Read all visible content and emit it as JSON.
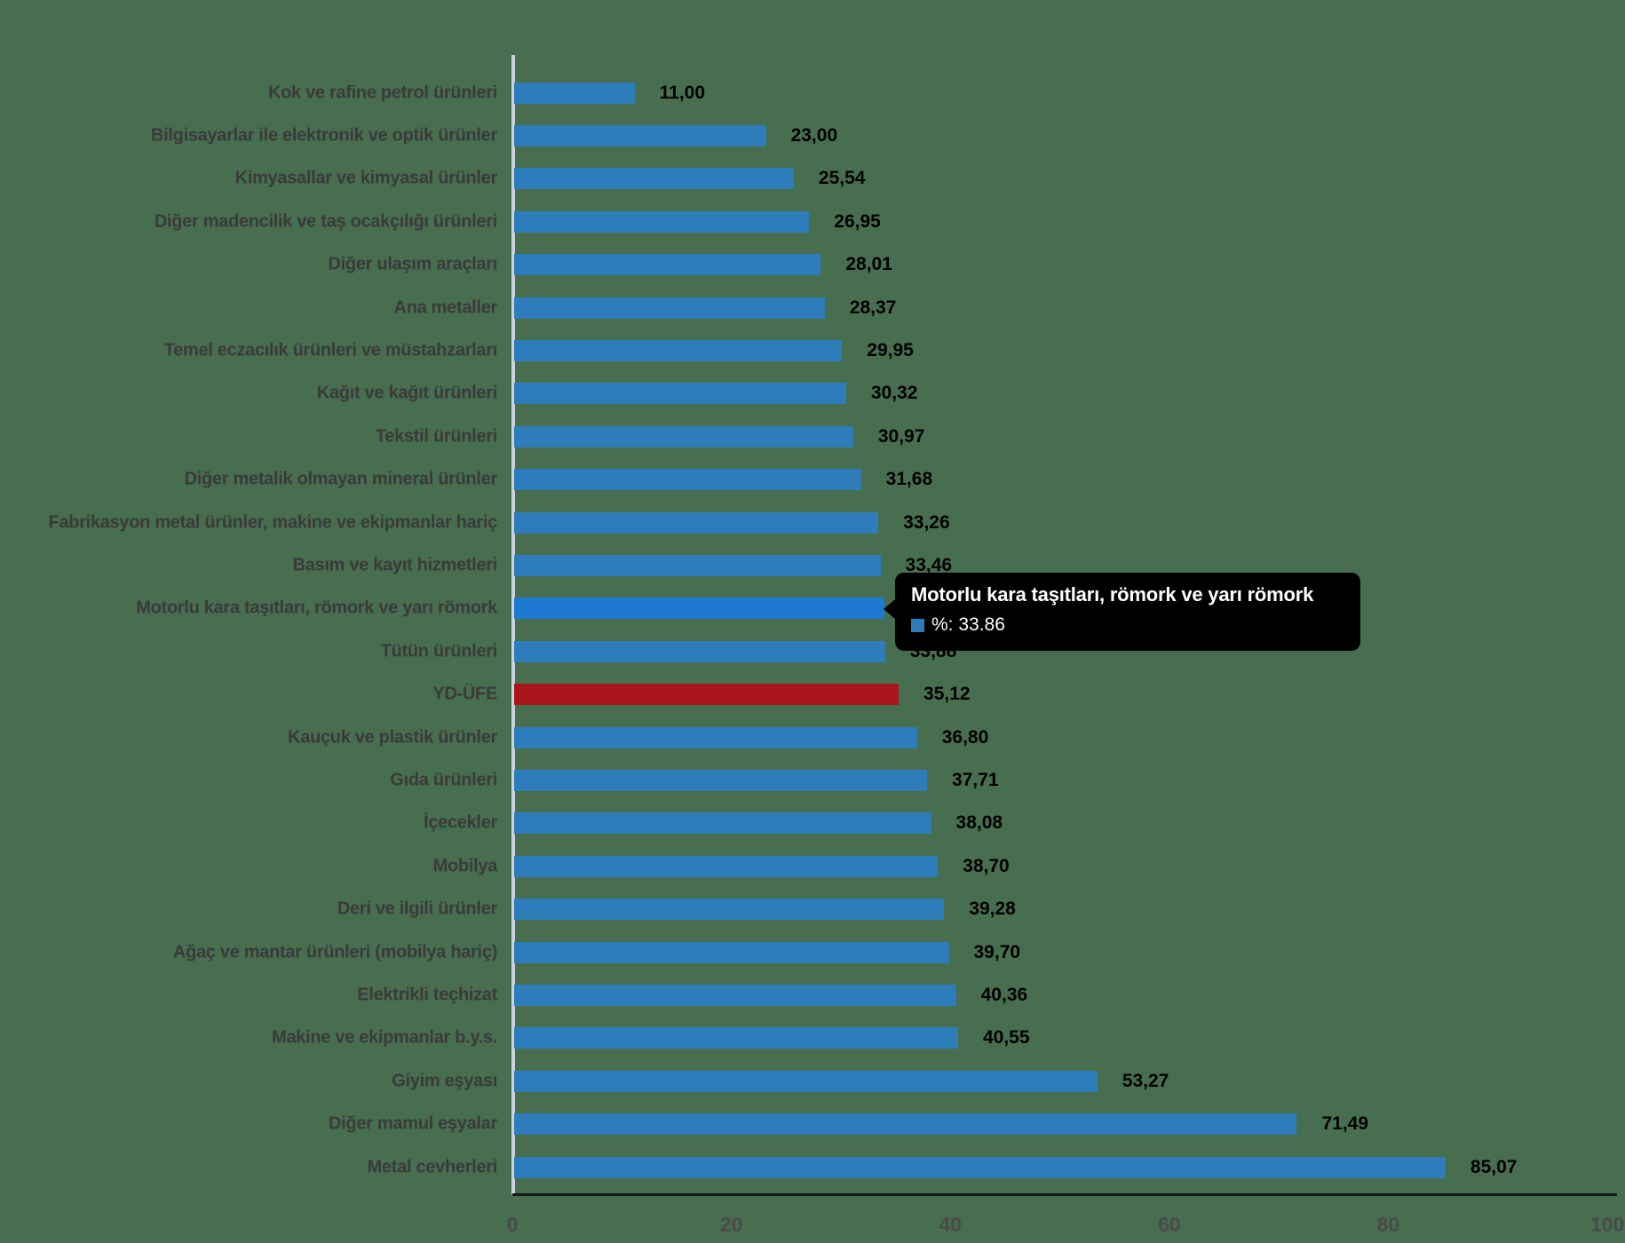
{
  "background_color": "#486E50",
  "chart_data": {
    "type": "bar",
    "orientation": "horizontal",
    "title": "",
    "categories": [
      "Kok ve rafine petrol ürünleri",
      "Bilgisayarlar ile elektronik ve optik ürünler",
      "Kimyasallar ve kimyasal ürünler",
      "Diğer madencilik ve taş ocakçılığı ürünleri",
      "Diğer ulaşım araçları",
      "Ana metaller",
      "Temel eczacılık ürünleri ve müstahzarları",
      "Kağıt ve kağıt ürünleri",
      "Tekstil ürünleri",
      "Diğer metalik olmayan mineral ürünler",
      "Fabrikasyon metal ürünler, makine ve ekipmanlar hariç",
      "Basım ve kayıt hizmetleri",
      "Motorlu kara taşıtları, römork ve yarı römork",
      "Tütün ürünleri",
      "YD-ÜFE",
      "Kauçuk ve plastik ürünler",
      "Gıda ürünleri",
      "İçecekler",
      "Mobilya",
      "Deri ve ilgili ürünler",
      "Ağaç ve mantar ürünleri (mobilya hariç)",
      "Elektrikli teçhizat",
      "Makine ve ekipmanlar b.y.s.",
      "Giyim eşyası",
      "Diğer mamul eşyalar",
      "Metal cevherleri"
    ],
    "values": [
      11.0,
      23.0,
      25.54,
      26.95,
      28.01,
      28.37,
      29.95,
      30.32,
      30.97,
      31.68,
      33.26,
      33.46,
      33.86,
      33.88,
      35.12,
      36.8,
      37.71,
      38.08,
      38.7,
      39.28,
      39.7,
      40.36,
      40.55,
      53.27,
      71.49,
      85.07
    ],
    "value_labels": [
      "11,00",
      "23,00",
      "25,54",
      "26,95",
      "28,01",
      "28,37",
      "29,95",
      "30,32",
      "30,97",
      "31,68",
      "33,26",
      "33,46",
      "33,86",
      "33,88",
      "35,12",
      "36,80",
      "37,71",
      "38,08",
      "38,70",
      "39,28",
      "39,70",
      "40,36",
      "40,55",
      "53,27",
      "71,49",
      "85,07"
    ],
    "xlabel": "",
    "ylabel": "",
    "xlim": [
      0,
      100
    ],
    "x_ticks": [
      "0",
      "20",
      "40",
      "60",
      "80",
      "100"
    ],
    "x_tick_values": [
      0,
      20,
      40,
      60,
      80,
      100
    ],
    "grid": false,
    "legend": "none",
    "bar_color": "#2E7CBA",
    "hover_bar_color": "#1D78D2",
    "emphasis_bar_color": "#A8151C",
    "hovered_index": 12,
    "emphasis_index": 14
  },
  "tooltip": {
    "title": "Motorlu kara taşıtları, römork ve yarı römork",
    "swatch_color": "#2E7CBA",
    "value_text": "%: 33.86"
  }
}
